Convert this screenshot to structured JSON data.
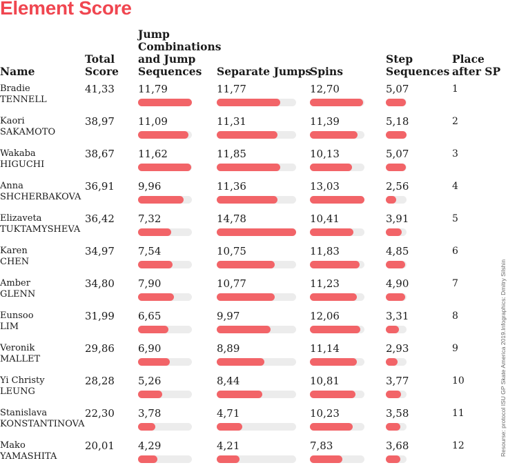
{
  "title": "Element Score",
  "headers": {
    "name": "Name",
    "total": "Total\nScore",
    "jump_combinations": "Jump\nCombinations\nand Jump\nSequences",
    "separate_jumps": "Separate Jumps",
    "spins": "Spins",
    "step_sequences": "Step\nSequences",
    "place": "Place\nafter SP"
  },
  "source_note": "Resourse: protocol ISU GP Skate America 2019.Infographics: Dmitry Silshin",
  "colors": {
    "accent": "#f04650",
    "bar": "#f26468",
    "track": "#ececec"
  },
  "chart_data": {
    "type": "table",
    "title": "Element Score",
    "columns": [
      "Name",
      "Total Score",
      "Jump Combinations and Jump Sequences",
      "Separate Jumps",
      "Spins",
      "Step Sequences",
      "Place after SP"
    ],
    "column_max": {
      "jump_combinations": 11.79,
      "separate_jumps": 14.78,
      "spins": 13.03,
      "step_sequences": 5.18
    },
    "rows": [
      {
        "name": "Bradie\nTENNELL",
        "total": "41,33",
        "jump_combinations": 11.79,
        "jump_combinations_label": "11,79",
        "separate_jumps": 11.77,
        "separate_jumps_label": "11,77",
        "spins": 12.7,
        "spins_label": "12,70",
        "step_sequences": 5.07,
        "step_sequences_label": "5,07",
        "place": "1"
      },
      {
        "name": "Kaori\nSAKAMOTO",
        "total": "38,97",
        "jump_combinations": 11.09,
        "jump_combinations_label": "11,09",
        "separate_jumps": 11.31,
        "separate_jumps_label": "11,31",
        "spins": 11.39,
        "spins_label": "11,39",
        "step_sequences": 5.18,
        "step_sequences_label": "5,18",
        "place": "2"
      },
      {
        "name": "Wakaba\nHIGUCHI",
        "total": "38,67",
        "jump_combinations": 11.62,
        "jump_combinations_label": "11,62",
        "separate_jumps": 11.85,
        "separate_jumps_label": "11,85",
        "spins": 10.13,
        "spins_label": "10,13",
        "step_sequences": 5.07,
        "step_sequences_label": "5,07",
        "place": "3"
      },
      {
        "name": "Anna\nSHCHERBAKOVA",
        "total": "36,91",
        "jump_combinations": 9.96,
        "jump_combinations_label": "9,96",
        "separate_jumps": 11.36,
        "separate_jumps_label": "11,36",
        "spins": 13.03,
        "spins_label": "13,03",
        "step_sequences": 2.56,
        "step_sequences_label": "2,56",
        "place": "4"
      },
      {
        "name": "Elizaveta\nTUKTAMYSHEVA",
        "total": "36,42",
        "jump_combinations": 7.32,
        "jump_combinations_label": "7,32",
        "separate_jumps": 14.78,
        "separate_jumps_label": "14,78",
        "spins": 10.41,
        "spins_label": "10,41",
        "step_sequences": 3.91,
        "step_sequences_label": "3,91",
        "place": "5"
      },
      {
        "name": "Karen\nCHEN",
        "total": "34,97",
        "jump_combinations": 7.54,
        "jump_combinations_label": "7,54",
        "separate_jumps": 10.75,
        "separate_jumps_label": "10,75",
        "spins": 11.83,
        "spins_label": "11,83",
        "step_sequences": 4.85,
        "step_sequences_label": "4,85",
        "place": "6"
      },
      {
        "name": "Amber\nGLENN",
        "total": "34,80",
        "jump_combinations": 7.9,
        "jump_combinations_label": "7,90",
        "separate_jumps": 10.77,
        "separate_jumps_label": "10,77",
        "spins": 11.23,
        "spins_label": "11,23",
        "step_sequences": 4.9,
        "step_sequences_label": "4,90",
        "place": "7"
      },
      {
        "name": "Eunsoo\nLIM",
        "total": "31,99",
        "jump_combinations": 6.65,
        "jump_combinations_label": "6,65",
        "separate_jumps": 9.97,
        "separate_jumps_label": "9,97",
        "spins": 12.06,
        "spins_label": "12,06",
        "step_sequences": 3.31,
        "step_sequences_label": "3,31",
        "place": "8"
      },
      {
        "name": "Veronik\nMALLET",
        "total": "29,86",
        "jump_combinations": 6.9,
        "jump_combinations_label": "6,90",
        "separate_jumps": 8.89,
        "separate_jumps_label": "8,89",
        "spins": 11.14,
        "spins_label": "11,14",
        "step_sequences": 2.93,
        "step_sequences_label": "2,93",
        "place": "9"
      },
      {
        "name": "Yi Christy\nLEUNG",
        "total": "28,28",
        "jump_combinations": 5.26,
        "jump_combinations_label": "5,26",
        "separate_jumps": 8.44,
        "separate_jumps_label": "8,44",
        "spins": 10.81,
        "spins_label": "10,81",
        "step_sequences": 3.77,
        "step_sequences_label": "3,77",
        "place": "10"
      },
      {
        "name": "Stanislava\nKONSTANTINOVA",
        "total": "22,30",
        "jump_combinations": 3.78,
        "jump_combinations_label": "3,78",
        "separate_jumps": 4.71,
        "separate_jumps_label": "4,71",
        "spins": 10.23,
        "spins_label": "10,23",
        "step_sequences": 3.58,
        "step_sequences_label": "3,58",
        "place": "11"
      },
      {
        "name": "Mako\nYAMASHITA",
        "total": "20,01",
        "jump_combinations": 4.29,
        "jump_combinations_label": "4,29",
        "separate_jumps": 4.21,
        "separate_jumps_label": "4,21",
        "spins": 7.83,
        "spins_label": "7,83",
        "step_sequences": 3.68,
        "step_sequences_label": "3,68",
        "place": "12"
      }
    ]
  }
}
